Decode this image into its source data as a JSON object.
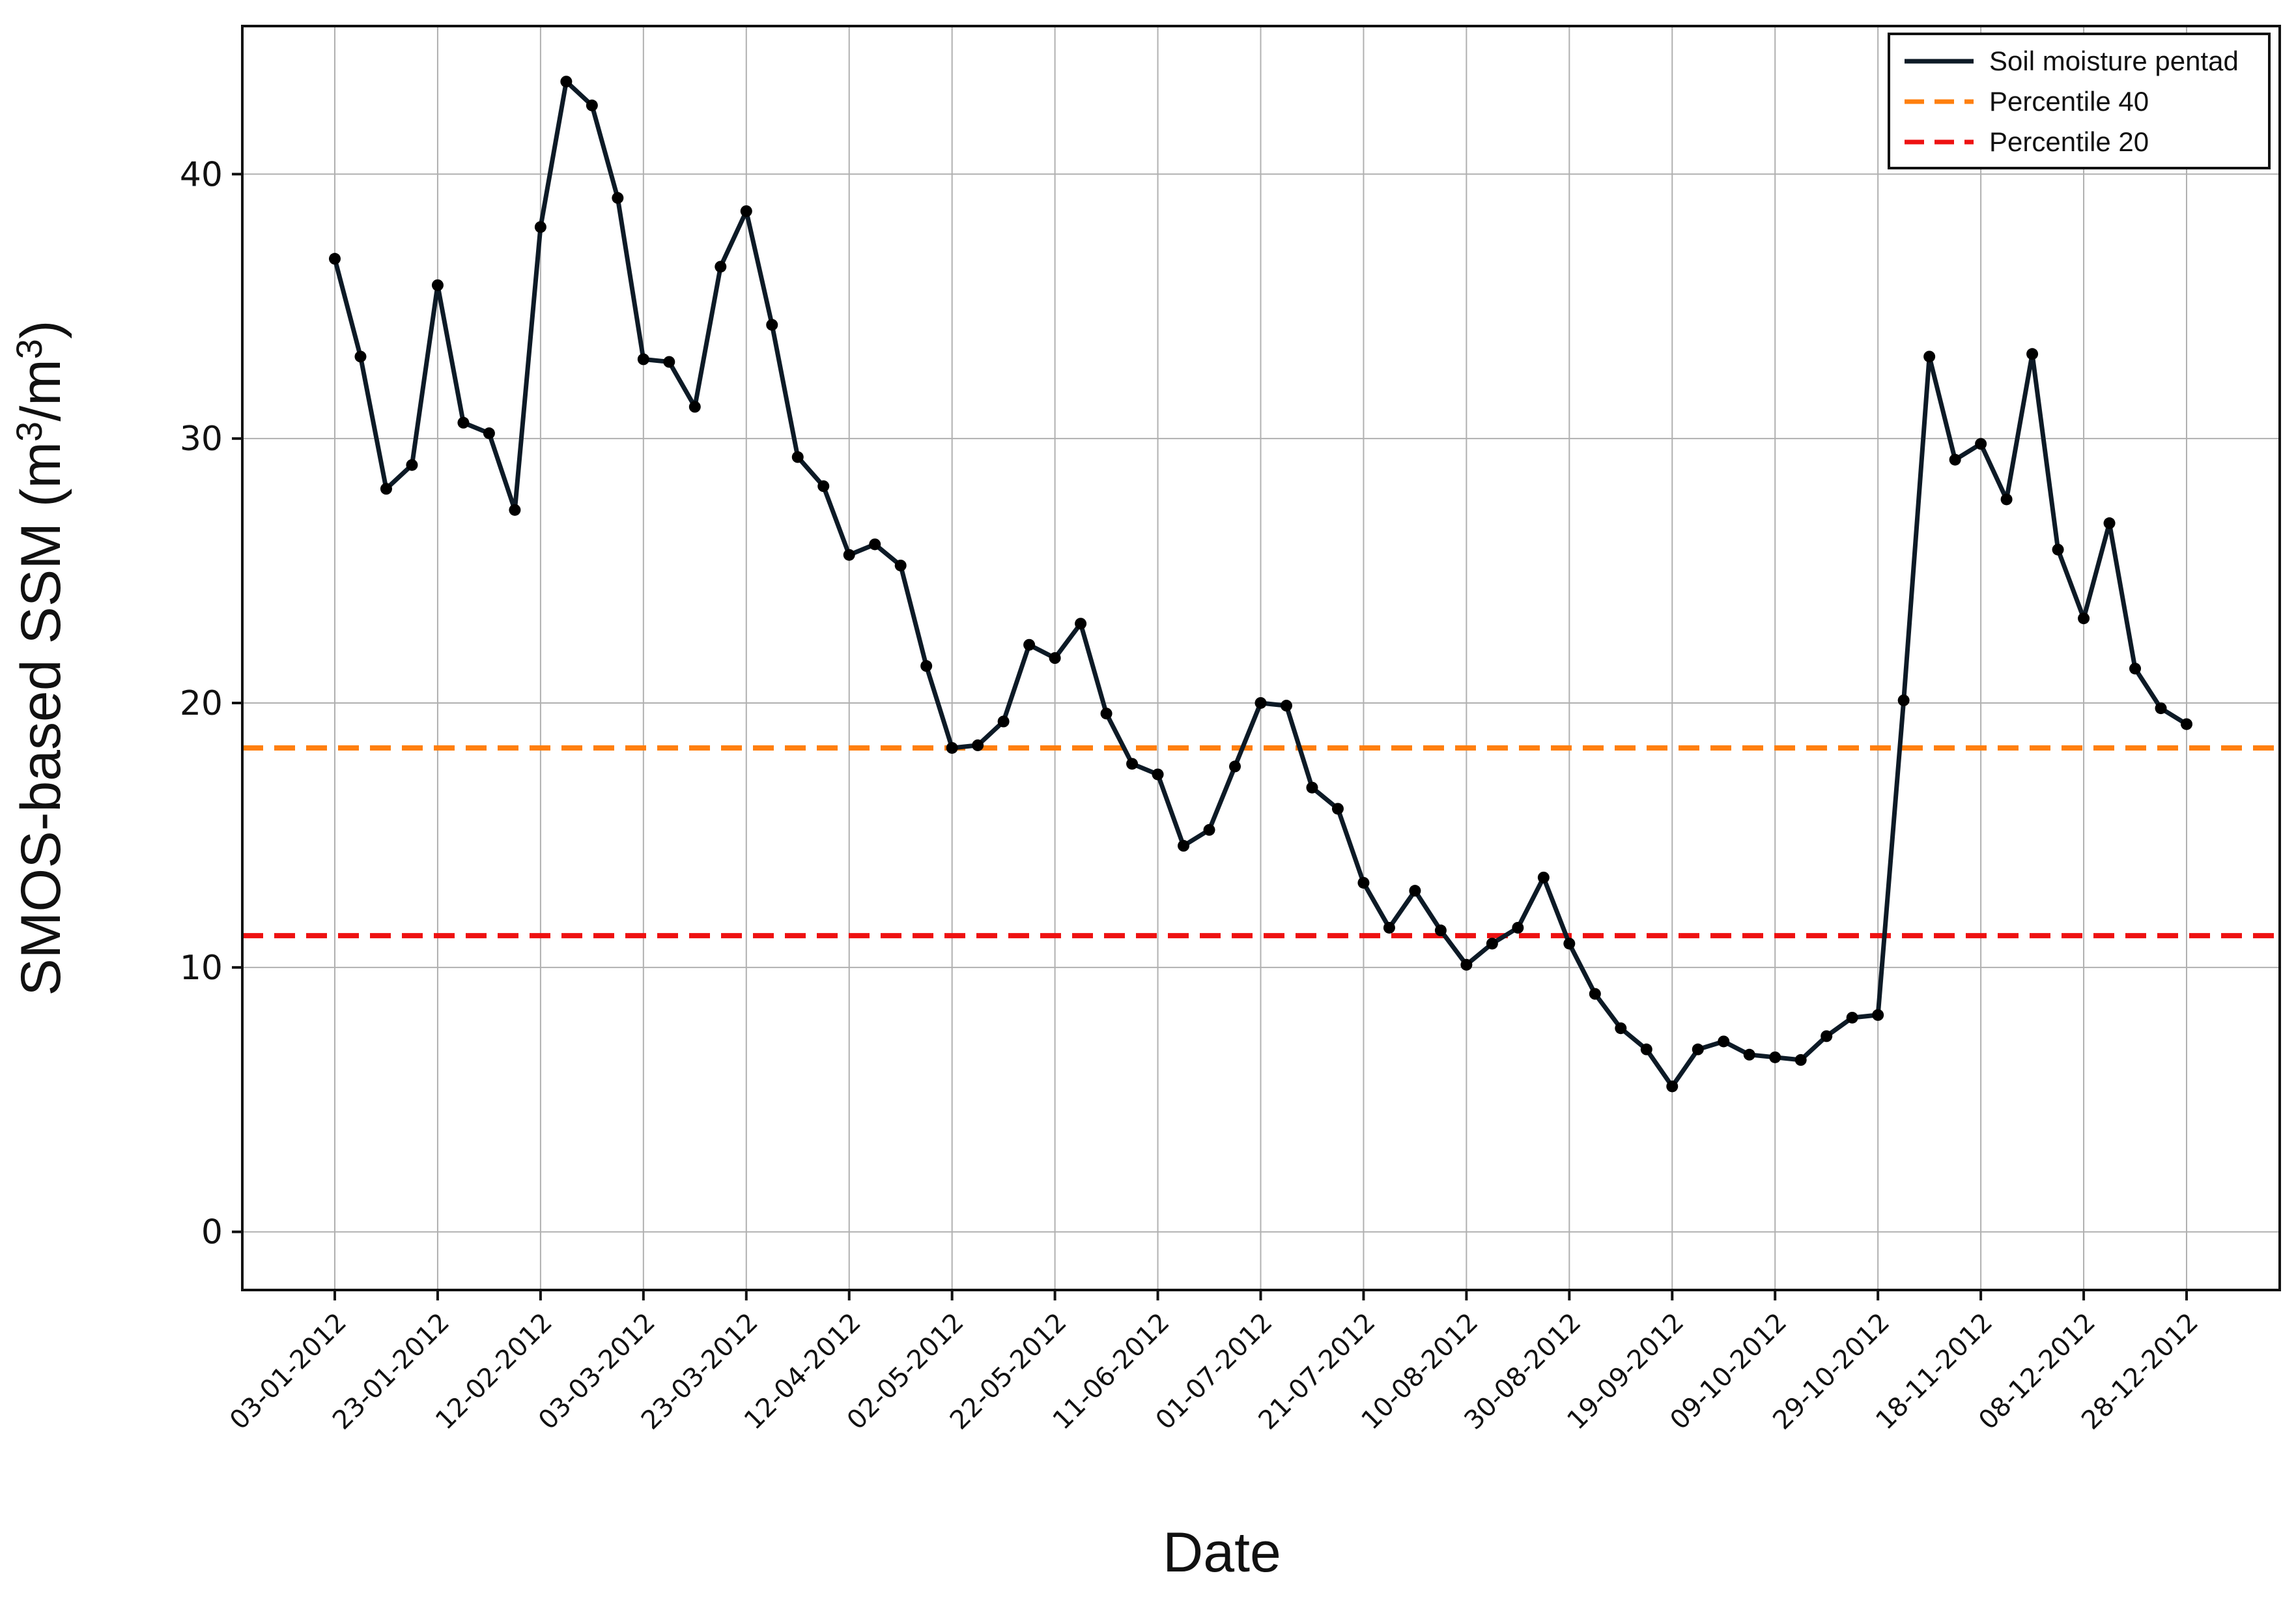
{
  "chart_data": {
    "type": "line",
    "xlabel": "Date",
    "ylabel_main": "SMOS-based SSM (m",
    "ylabel_sup1": "3",
    "ylabel_mid": "/m",
    "ylabel_sup2": "3",
    "ylabel_end": ")",
    "ylim": [
      -2.2,
      45.6
    ],
    "yticks": [
      0,
      10,
      20,
      30,
      40
    ],
    "grid": true,
    "legend_position": "top-right",
    "x_tick_labels": [
      "03-01-2012",
      "23-01-2012",
      "12-02-2012",
      "03-03-2012",
      "23-03-2012",
      "12-04-2012",
      "02-05-2012",
      "22-05-2012",
      "11-06-2012",
      "01-07-2012",
      "21-07-2012",
      "10-08-2012",
      "30-08-2012",
      "19-09-2012",
      "09-10-2012",
      "29-10-2012",
      "18-11-2012",
      "08-12-2012",
      "28-12-2012"
    ],
    "series": [
      {
        "name": "Soil moisture pentad",
        "color": "#0d1a26",
        "style": "solid-with-markers",
        "values": [
          36.8,
          33.1,
          28.1,
          29.0,
          35.8,
          30.6,
          30.2,
          27.3,
          38.0,
          43.5,
          42.6,
          39.1,
          33.0,
          32.9,
          31.2,
          36.5,
          38.6,
          34.3,
          29.3,
          28.2,
          25.6,
          26.0,
          25.2,
          21.4,
          18.3,
          18.4,
          19.3,
          22.2,
          21.7,
          23.0,
          19.6,
          17.7,
          17.3,
          14.6,
          15.2,
          17.6,
          20.0,
          19.9,
          16.8,
          16.0,
          13.2,
          11.5,
          12.9,
          11.4,
          10.1,
          10.9,
          11.5,
          13.4,
          10.9,
          9.0,
          7.7,
          6.9,
          5.5,
          6.9,
          7.2,
          6.7,
          6.6,
          6.5,
          7.4,
          8.1,
          8.2,
          20.1,
          33.1,
          29.2,
          29.8,
          27.7,
          33.2,
          25.8,
          23.2,
          26.8,
          21.3,
          19.8,
          19.2
        ]
      },
      {
        "name": "Percentile 40",
        "color": "#ff7f0e",
        "style": "dashed",
        "value": 18.3
      },
      {
        "name": "Percentile 20",
        "color": "#ee1111",
        "style": "dashed",
        "value": 11.2
      }
    ]
  }
}
